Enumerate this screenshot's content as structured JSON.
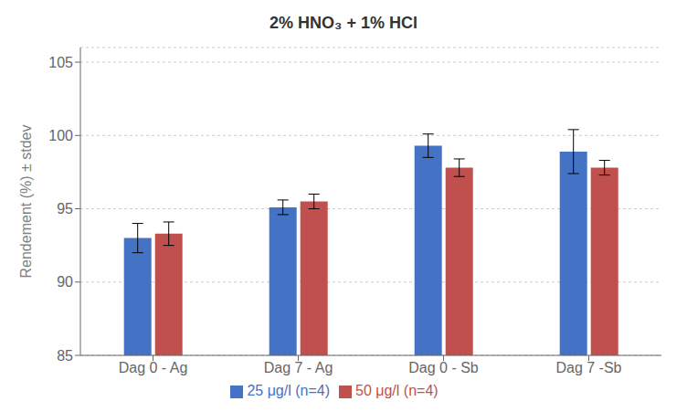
{
  "chart_data": {
    "type": "bar",
    "title": "2% HNO₃ + 1% HCl",
    "ylabel": "Rendement (%) ± stdev",
    "categories": [
      "Dag 0 - Ag",
      "Dag 7 - Ag",
      "Dag 0 - Sb",
      "Dag 7 -Sb"
    ],
    "series": [
      {
        "name": "25 μg/l (n=4)",
        "color": "#4472C4",
        "values": [
          93.0,
          95.1,
          99.3,
          98.9
        ],
        "errors": [
          1.0,
          0.5,
          0.8,
          1.5
        ]
      },
      {
        "name": "50 μg/l (n=4)",
        "color": "#C0504D",
        "values": [
          93.3,
          95.5,
          97.8,
          97.8
        ],
        "errors": [
          0.8,
          0.5,
          0.6,
          0.5
        ]
      }
    ],
    "ylim": [
      85,
      106
    ],
    "yticks": [
      85,
      90,
      95,
      100,
      105
    ],
    "grid": true,
    "legend": "bottom"
  }
}
